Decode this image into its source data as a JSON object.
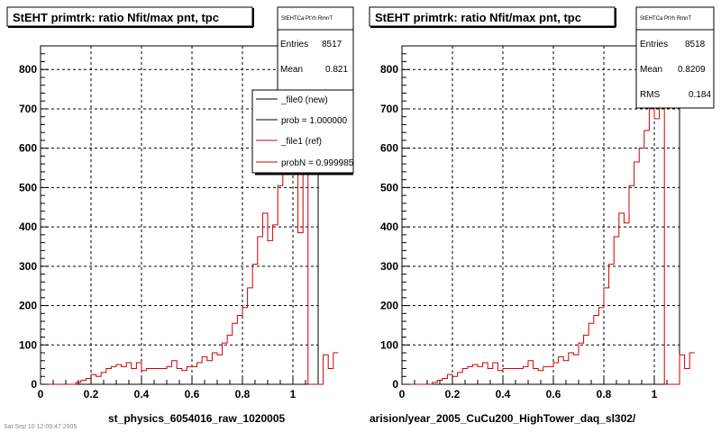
{
  "footer_text": "Sat Sep 10 12:09:47 2005",
  "colors": {
    "ref": "#cc0000",
    "new": "#000000",
    "grid": "#000000",
    "frame_shadow": "#000000"
  },
  "chart_data": [
    {
      "type": "histogram",
      "title": "StEHT primtrk: ratio Nfit/max pnt, tpc",
      "xlabel": "st_physics_6054016_raw_1020005",
      "xlim": [
        0,
        1.1
      ],
      "ylim": [
        0,
        860
      ],
      "xticks": [
        "0",
        "0.2",
        "0.4",
        "0.6",
        "0.8",
        "1"
      ],
      "yticks": [
        "0",
        "100",
        "200",
        "300",
        "400",
        "500",
        "600",
        "700",
        "800"
      ],
      "grid": true,
      "stats": {
        "header": "StEHTCa Pt'rh RmnT",
        "entries_label": "Entries",
        "entries_value": "8517",
        "mean_label": "Mean",
        "mean_value": "0.821"
      },
      "legend": {
        "placement": "top-right",
        "entries": [
          {
            "label": "_file0 (new)",
            "color": "#000000"
          },
          {
            "label": "prob = 1.000000",
            "color": "#000000"
          },
          {
            "label": "_file1 (ref)",
            "color": "#cc0000"
          },
          {
            "label": "probN = 0.999985",
            "color": "#cc0000"
          }
        ]
      },
      "bin_edges_start": 0,
      "bin_width": 0.02,
      "series": [
        {
          "color": "#cc0000",
          "values": [
            0,
            0,
            0,
            0,
            0,
            0,
            0,
            5,
            10,
            15,
            25,
            20,
            30,
            40,
            45,
            50,
            45,
            55,
            40,
            55,
            35,
            40,
            40,
            40,
            40,
            45,
            60,
            40,
            35,
            45,
            45,
            55,
            70,
            60,
            80,
            75,
            105,
            125,
            155,
            175,
            195,
            245,
            305,
            375,
            435,
            365,
            405,
            505,
            560,
            600,
            640,
            385,
            860,
            0,
            0,
            0,
            75,
            40,
            80
          ]
        }
      ]
    },
    {
      "type": "histogram",
      "title": "StEHT primtrk: ratio Nfit/max pnt, tpc",
      "xlabel": "arision/year_2005_CuCu200_HighTower_daq_sl302/",
      "xlim": [
        0,
        1.1
      ],
      "ylim": [
        0,
        860
      ],
      "xticks": [
        "0",
        "0.2",
        "0.4",
        "0.6",
        "0.8",
        "1"
      ],
      "yticks": [
        "0",
        "100",
        "200",
        "300",
        "400",
        "500",
        "600",
        "700",
        "800"
      ],
      "grid": true,
      "stats": {
        "header": "StEHTCa Pt'rh RmnT",
        "entries_label": "Entries",
        "entries_value": "8518",
        "mean_label": "Mean",
        "mean_value": "0.8209",
        "rms_label": "RMS",
        "rms_value": "0.184"
      },
      "bin_edges_start": 0,
      "bin_width": 0.02,
      "series": [
        {
          "color": "#cc0000",
          "values": [
            0,
            0,
            0,
            0,
            0,
            0,
            5,
            10,
            15,
            25,
            20,
            30,
            40,
            45,
            50,
            45,
            55,
            40,
            55,
            35,
            40,
            40,
            40,
            40,
            45,
            60,
            40,
            35,
            45,
            45,
            55,
            70,
            60,
            80,
            75,
            105,
            125,
            155,
            175,
            195,
            245,
            305,
            375,
            435,
            410,
            505,
            565,
            600,
            645,
            700,
            675,
            860,
            0,
            0,
            0,
            75,
            40,
            80
          ]
        }
      ]
    }
  ]
}
